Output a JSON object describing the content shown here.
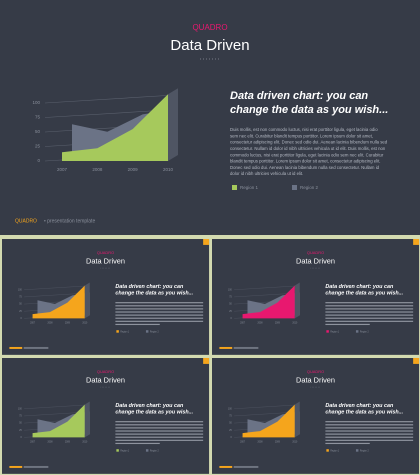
{
  "chart_data": [
    {
      "type": "area",
      "subtitle": "QUADRO",
      "title": "Data Driven",
      "heading": [
        "Data driven chart: you can",
        "change the data as you wish..."
      ],
      "body": [
        "Duis mollis, est non commodo luctus, nisi erat porttitor ligula, eget lacinia odio",
        "sem nec elit. Curabitur blandit tempus porttitor. Lorem ipsum dolor sit amet,",
        "consectetur adipiscing elit. Donec sed odio dui. Aenean lacinia bibendum nulla sed",
        "consectetur. Nullam id dolor id nibh ultricies vehicula ut id elit. Duis mollis, est non",
        "commodo luctus, nisi erat porttitor ligula, eget lacinia odio sem nec elit. Curabitur",
        "blandit tempus porttitor. Lorem ipsum dolor sit amet, consectetur adipiscing elit.",
        "Donec sed odio dui. Aenean lacinia bibendum nulla sed consectetur. Nullam id",
        "dolor id nibh ultricies vehicula ut id elit."
      ],
      "footer_brand": "QUADRO",
      "footer_text": "• presentation template",
      "categories": [
        "2007",
        "2008",
        "2009",
        "2010"
      ],
      "series": [
        {
          "name": "Region 1",
          "color": "#a6c95c",
          "values": [
            15,
            22,
            55,
            115
          ]
        },
        {
          "name": "Region 2",
          "color": "#6b7386",
          "values": [
            53,
            40,
            70,
            80
          ]
        }
      ],
      "ylim": [
        0,
        125
      ],
      "yticks": [
        0,
        25,
        50,
        75,
        100
      ]
    },
    {
      "type": "area",
      "subtitle": "QUADRO",
      "title": "Data Driven",
      "heading": [
        "Data driven chart: you can",
        "change the data as you wish..."
      ],
      "categories": [
        "2007",
        "2008",
        "2009",
        "2010"
      ],
      "series": [
        {
          "name": "Region 1",
          "color": "#f5a51c",
          "values": [
            15,
            22,
            55,
            115
          ]
        },
        {
          "name": "Region 2",
          "color": "#6b7386",
          "values": [
            53,
            40,
            70,
            80
          ]
        }
      ],
      "ylim": [
        0,
        125
      ],
      "yticks": [
        0,
        25,
        50,
        75,
        100
      ]
    },
    {
      "type": "area",
      "subtitle": "QUADRO",
      "title": "Data Driven",
      "heading": [
        "Data driven chart: you can",
        "change the data as you wish..."
      ],
      "categories": [
        "2007",
        "2008",
        "2009",
        "2010"
      ],
      "series": [
        {
          "name": "Region 1",
          "color": "#e8186f",
          "values": [
            15,
            22,
            55,
            115
          ]
        },
        {
          "name": "Region 2",
          "color": "#6b7386",
          "values": [
            53,
            40,
            70,
            80
          ]
        }
      ],
      "ylim": [
        0,
        125
      ],
      "yticks": [
        0,
        25,
        50,
        75,
        100
      ]
    },
    {
      "type": "area",
      "subtitle": "QUADRO",
      "title": "Data Driven",
      "heading": [
        "Data driven chart: you can",
        "change the data as you wish..."
      ],
      "categories": [
        "2007",
        "2008",
        "2009",
        "2010"
      ],
      "series": [
        {
          "name": "Region 1",
          "color": "#a6c95c",
          "values": [
            15,
            22,
            55,
            115
          ]
        },
        {
          "name": "Region 2",
          "color": "#6b7386",
          "values": [
            53,
            40,
            70,
            80
          ]
        }
      ],
      "ylim": [
        0,
        125
      ],
      "yticks": [
        0,
        25,
        50,
        75,
        100
      ]
    },
    {
      "type": "area",
      "subtitle": "QUADRO",
      "title": "Data Driven",
      "heading": [
        "Data driven chart: you can",
        "change the data as you wish..."
      ],
      "categories": [
        "2007",
        "2008",
        "2009",
        "2010"
      ],
      "series": [
        {
          "name": "Region 1",
          "color": "#f5a51c",
          "values": [
            15,
            22,
            55,
            115
          ]
        },
        {
          "name": "Region 2",
          "color": "#6b7386",
          "values": [
            53,
            40,
            70,
            80
          ]
        }
      ],
      "ylim": [
        0,
        125
      ],
      "yticks": [
        0,
        25,
        50,
        75,
        100
      ]
    }
  ]
}
